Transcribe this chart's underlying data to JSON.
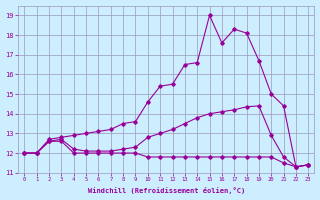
{
  "xlabel": "Windchill (Refroidissement éolien,°C)",
  "x": [
    0,
    1,
    2,
    3,
    4,
    5,
    6,
    7,
    8,
    9,
    10,
    11,
    12,
    13,
    14,
    15,
    16,
    17,
    18,
    19,
    20,
    21,
    22,
    23
  ],
  "line1": [
    12.0,
    12.0,
    12.6,
    12.6,
    12.0,
    12.0,
    12.0,
    12.0,
    12.0,
    12.0,
    11.8,
    11.8,
    11.8,
    11.8,
    11.8,
    11.8,
    11.8,
    11.8,
    11.8,
    11.8,
    11.8,
    11.5,
    11.3,
    11.4
  ],
  "line2": [
    12.0,
    12.0,
    12.6,
    12.7,
    12.2,
    12.1,
    12.1,
    12.1,
    12.2,
    12.3,
    12.8,
    13.0,
    13.2,
    13.5,
    13.8,
    14.0,
    14.1,
    14.2,
    14.35,
    14.4,
    12.9,
    11.8,
    11.3,
    11.4
  ],
  "line3": [
    12.0,
    12.0,
    12.7,
    12.8,
    12.9,
    13.0,
    13.1,
    13.2,
    13.5,
    13.6,
    14.6,
    15.4,
    15.5,
    16.5,
    16.6,
    19.0,
    17.6,
    18.3,
    18.1,
    16.7,
    15.0,
    14.4,
    11.3,
    11.4
  ],
  "color": "#990099",
  "bg_color": "#cceeff",
  "grid_color": "#9999bb",
  "ylim": [
    11,
    19.5
  ],
  "yticks": [
    11,
    12,
    13,
    14,
    15,
    16,
    17,
    18,
    19
  ],
  "xlim": [
    -0.5,
    23.5
  ]
}
